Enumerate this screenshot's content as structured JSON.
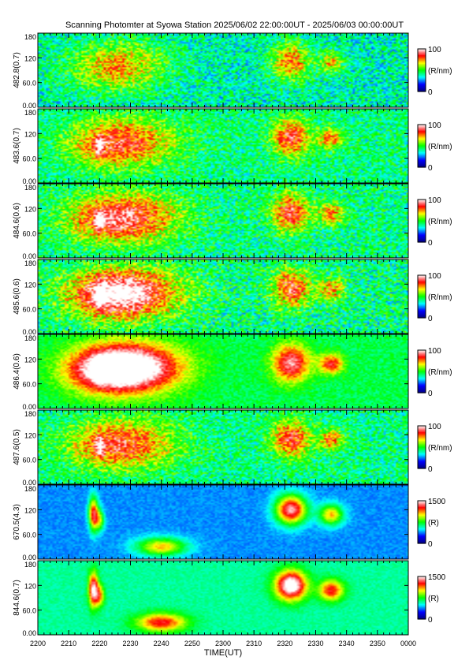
{
  "title": "Scanning Photomter at Syowa Station  2025/06/02 22:00:00UT - 2025/06/03 00:00:00UT",
  "chart_data": {
    "type": "heatmap",
    "title": "Scanning Photomter at Syowa Station  2025/06/02 22:00:00UT - 2025/06/03 00:00:00UT",
    "xlabel": "TIME(UT)",
    "x_ticks": [
      "2200",
      "2210",
      "2220",
      "2230",
      "2240",
      "2250",
      "2300",
      "2310",
      "2320",
      "2330",
      "2340",
      "2350",
      "0000"
    ],
    "x_range_minutes": [
      0,
      120
    ],
    "y_ticks": [
      "0.00",
      "60.0",
      "120",
      "180"
    ],
    "y_range": [
      0,
      180
    ],
    "colormap": [
      "#000080",
      "#0000ff",
      "#00ffff",
      "#00ff00",
      "#ffff00",
      "#ff0000",
      "#ffffff"
    ],
    "panels": [
      {
        "ylabel": "482.8(0.7)",
        "cbar_max": "100",
        "cbar_min": "0",
        "cbar_unit": "(R/nm)",
        "background": 0.38,
        "noise": 0.3,
        "features": [
          [
            23,
            95,
            14,
            55,
            0.22
          ],
          [
            30,
            105,
            14,
            60,
            0.15
          ],
          [
            82,
            110,
            6,
            45,
            0.4
          ],
          [
            95,
            108,
            4,
            25,
            0.3
          ]
        ]
      },
      {
        "ylabel": "483.6(0.7)",
        "cbar_max": "100",
        "cbar_min": "0",
        "cbar_unit": "(R/nm)",
        "background": 0.42,
        "noise": 0.28,
        "features": [
          [
            23,
            95,
            14,
            55,
            0.3
          ],
          [
            33,
            100,
            16,
            60,
            0.2
          ],
          [
            20,
            90,
            1.5,
            25,
            0.3
          ],
          [
            82,
            110,
            6,
            45,
            0.45
          ],
          [
            95,
            108,
            4,
            25,
            0.35
          ]
        ]
      },
      {
        "ylabel": "484.6(0.6)",
        "cbar_max": "100",
        "cbar_min": "0",
        "cbar_unit": "(R/nm)",
        "background": 0.42,
        "noise": 0.3,
        "features": [
          [
            23,
            95,
            14,
            55,
            0.35
          ],
          [
            33,
            100,
            16,
            60,
            0.25
          ],
          [
            20,
            90,
            1.5,
            25,
            0.3
          ],
          [
            82,
            110,
            6,
            45,
            0.45
          ],
          [
            95,
            108,
            4,
            25,
            0.35
          ]
        ]
      },
      {
        "ylabel": "485.6(0.6)",
        "cbar_max": "100",
        "cbar_min": "0",
        "cbar_unit": "(R/nm)",
        "background": 0.42,
        "noise": 0.33,
        "features": [
          [
            23,
            95,
            14,
            55,
            0.45
          ],
          [
            33,
            100,
            16,
            60,
            0.35
          ],
          [
            20,
            90,
            1.5,
            25,
            0.3
          ],
          [
            82,
            110,
            6,
            45,
            0.45
          ],
          [
            95,
            108,
            4,
            25,
            0.35
          ]
        ]
      },
      {
        "ylabel": "486.4(0.6)",
        "cbar_max": "100",
        "cbar_min": "0",
        "cbar_unit": "(R/nm)",
        "background": 0.45,
        "noise": 0.12,
        "features": [
          [
            23,
            95,
            14,
            55,
            0.55
          ],
          [
            33,
            100,
            16,
            60,
            0.45
          ],
          [
            20,
            90,
            1.5,
            25,
            0.3
          ],
          [
            82,
            110,
            6,
            45,
            0.5
          ],
          [
            95,
            108,
            4,
            25,
            0.4
          ]
        ]
      },
      {
        "ylabel": "487.6(0.5)",
        "cbar_max": "100",
        "cbar_min": "0",
        "cbar_unit": "(R/nm)",
        "background": 0.42,
        "noise": 0.28,
        "features": [
          [
            23,
            95,
            14,
            55,
            0.3
          ],
          [
            33,
            100,
            16,
            60,
            0.2
          ],
          [
            20,
            90,
            1.5,
            25,
            0.3
          ],
          [
            82,
            110,
            6,
            45,
            0.45
          ],
          [
            95,
            108,
            4,
            25,
            0.35
          ]
        ]
      },
      {
        "ylabel": "670.5(4.3)",
        "cbar_max": "1500",
        "cbar_min": "0",
        "cbar_unit": "(R)",
        "background": 0.26,
        "noise": 0.06,
        "features": [
          [
            18,
            110,
            1.5,
            40,
            0.6
          ],
          [
            40,
            30,
            8,
            22,
            0.45
          ],
          [
            20,
            95,
            1.5,
            25,
            0.35
          ],
          [
            82,
            120,
            5,
            35,
            0.7
          ],
          [
            95,
            108,
            4,
            25,
            0.45
          ]
        ]
      },
      {
        "ylabel": "844.6(0.7)",
        "cbar_max": "1500",
        "cbar_min": "0",
        "cbar_unit": "(R)",
        "background": 0.4,
        "noise": 0.06,
        "features": [
          [
            18,
            110,
            1.5,
            40,
            0.6
          ],
          [
            40,
            30,
            8,
            22,
            0.45
          ],
          [
            20,
            95,
            1.5,
            25,
            0.35
          ],
          [
            82,
            120,
            5,
            35,
            0.7
          ],
          [
            95,
            108,
            4,
            25,
            0.45
          ]
        ]
      }
    ]
  }
}
